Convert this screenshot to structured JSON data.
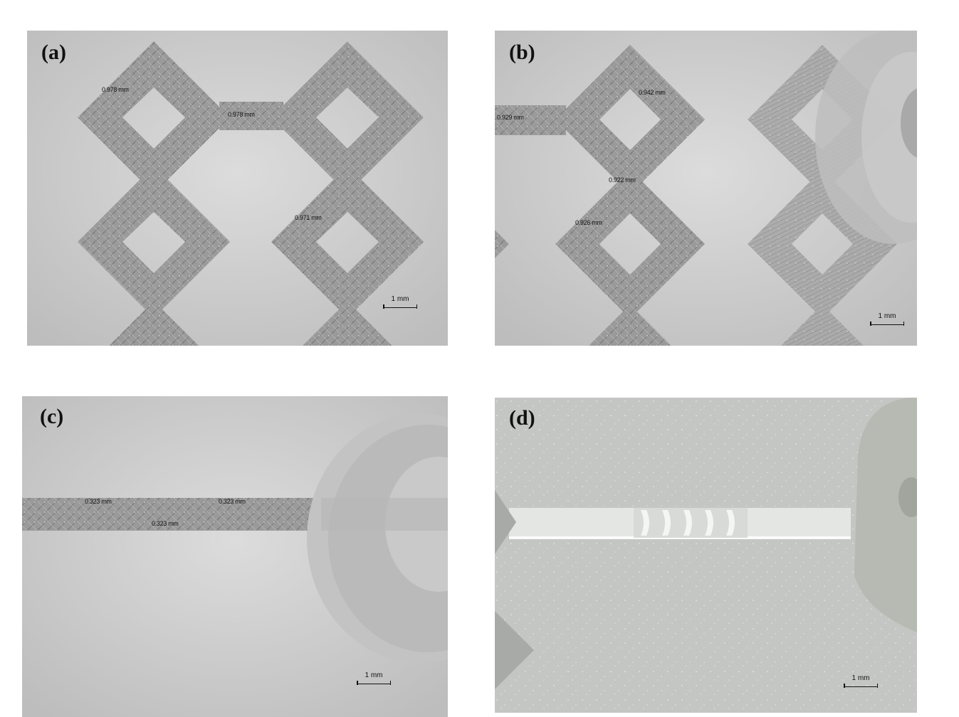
{
  "panels": {
    "a": {
      "label": "(a)",
      "measurements": [
        "0.978 mm",
        "0.978 mm",
        "0.971 mm"
      ],
      "scale": "1 mm"
    },
    "b": {
      "label": "(b)",
      "measurements": [
        "0.942 mm",
        "0.929 mm",
        "0.922 mm",
        "0.926 mm"
      ],
      "scale": "1 mm"
    },
    "c": {
      "label": "(c)",
      "measurements": [
        "0.323 mm",
        "0.323 mm",
        "0.323 mm"
      ],
      "scale": "1 mm"
    },
    "d": {
      "label": "(d)",
      "scale": "1 mm"
    }
  }
}
